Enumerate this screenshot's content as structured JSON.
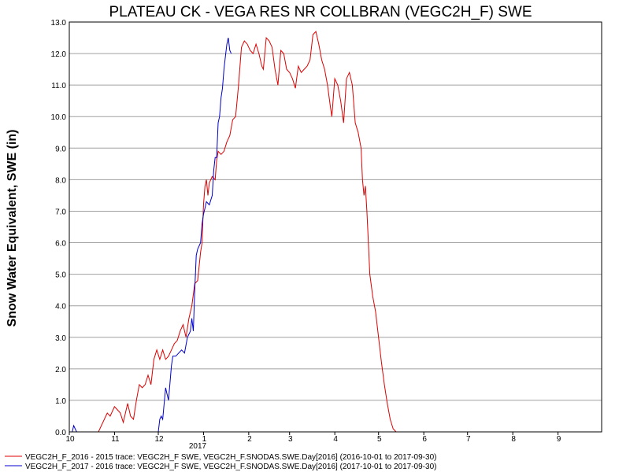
{
  "chart_data": {
    "type": "line",
    "title": "PLATEAU CK - VEGA RES NR COLLBRAN (VEGC2H_F) SWE",
    "ylabel": "Snow Water Equivalent, SWE (in)",
    "xlabel": "",
    "ylim": [
      0,
      13
    ],
    "yticks": [
      "0.0",
      "1.0",
      "2.0",
      "3.0",
      "4.0",
      "5.0",
      "6.0",
      "7.0",
      "8.0",
      "9.0",
      "10.0",
      "11.0",
      "12.0",
      "13.0"
    ],
    "xticks": [
      "10",
      "11",
      "12",
      "1",
      "2",
      "3",
      "4",
      "5",
      "6",
      "7",
      "8",
      "9"
    ],
    "year_label": "2017",
    "grid": true,
    "legend_position": "bottom-left",
    "series": [
      {
        "name": "VEGC2H_F_2016 - 2015 trace: VEGC2H_F SWE, VEGC2H_F.SNODAS.SWE.Day[2016] (2016-10-01 to 2017-09-30)",
        "color": "#dd0000",
        "points": [
          [
            0,
            0
          ],
          [
            20,
            0
          ],
          [
            26,
            0.6
          ],
          [
            28,
            0.5
          ],
          [
            31,
            0.8
          ],
          [
            33,
            0.7
          ],
          [
            35,
            0.6
          ],
          [
            37,
            0.3
          ],
          [
            40,
            0.9
          ],
          [
            42,
            0.5
          ],
          [
            44,
            0.4
          ],
          [
            46,
            1.0
          ],
          [
            48,
            1.5
          ],
          [
            50,
            1.4
          ],
          [
            52,
            1.5
          ],
          [
            54,
            1.8
          ],
          [
            56,
            1.5
          ],
          [
            58,
            2.3
          ],
          [
            60,
            2.6
          ],
          [
            62,
            2.3
          ],
          [
            64,
            2.6
          ],
          [
            66,
            2.3
          ],
          [
            68,
            2.4
          ],
          [
            70,
            2.6
          ],
          [
            72,
            2.8
          ],
          [
            74,
            2.9
          ],
          [
            76,
            3.2
          ],
          [
            78,
            3.4
          ],
          [
            80,
            3.0
          ],
          [
            82,
            3.6
          ],
          [
            84,
            4.0
          ],
          [
            86,
            4.7
          ],
          [
            88,
            4.8
          ],
          [
            90,
            5.7
          ],
          [
            91,
            6.0
          ],
          [
            92,
            7.2
          ],
          [
            93,
            7.8
          ],
          [
            94,
            8.0
          ],
          [
            95,
            7.5
          ],
          [
            96,
            7.9
          ],
          [
            98,
            8.1
          ],
          [
            100,
            8.0
          ],
          [
            101,
            8.6
          ],
          [
            102,
            8.9
          ],
          [
            104,
            8.8
          ],
          [
            106,
            8.9
          ],
          [
            108,
            9.2
          ],
          [
            110,
            9.4
          ],
          [
            112,
            9.9
          ],
          [
            114,
            10.0
          ],
          [
            116,
            11.0
          ],
          [
            118,
            12.2
          ],
          [
            120,
            12.4
          ],
          [
            122,
            12.3
          ],
          [
            124,
            12.1
          ],
          [
            126,
            12.0
          ],
          [
            128,
            12.3
          ],
          [
            130,
            12.0
          ],
          [
            132,
            11.6
          ],
          [
            133,
            11.5
          ],
          [
            135,
            12.5
          ],
          [
            137,
            12.4
          ],
          [
            139,
            12.2
          ],
          [
            141,
            11.5
          ],
          [
            143,
            11.0
          ],
          [
            145,
            12.1
          ],
          [
            147,
            12.0
          ],
          [
            149,
            11.5
          ],
          [
            151,
            11.4
          ],
          [
            153,
            11.2
          ],
          [
            155,
            10.9
          ],
          [
            157,
            11.6
          ],
          [
            159,
            11.4
          ],
          [
            161,
            11.5
          ],
          [
            163,
            11.6
          ],
          [
            165,
            11.8
          ],
          [
            167,
            12.6
          ],
          [
            169,
            12.7
          ],
          [
            171,
            12.3
          ],
          [
            173,
            11.8
          ],
          [
            175,
            11.5
          ],
          [
            177,
            11.0
          ],
          [
            179,
            10.3
          ],
          [
            180,
            10.0
          ],
          [
            182,
            11.2
          ],
          [
            184,
            11.0
          ],
          [
            186,
            10.5
          ],
          [
            188,
            9.8
          ],
          [
            190,
            11.2
          ],
          [
            192,
            11.4
          ],
          [
            194,
            11.0
          ],
          [
            196,
            9.8
          ],
          [
            198,
            9.5
          ],
          [
            200,
            9.0
          ],
          [
            201,
            8.0
          ],
          [
            202,
            7.5
          ],
          [
            203,
            7.8
          ],
          [
            204,
            7.0
          ],
          [
            205,
            6.0
          ],
          [
            206,
            5.0
          ],
          [
            208,
            4.3
          ],
          [
            210,
            3.8
          ],
          [
            212,
            3.0
          ],
          [
            214,
            2.2
          ],
          [
            216,
            1.5
          ],
          [
            218,
            0.9
          ],
          [
            220,
            0.4
          ],
          [
            222,
            0.1
          ],
          [
            224,
            0
          ],
          [
            362,
            0
          ]
        ]
      },
      {
        "name": "VEGC2H_F_2017 - 2016 trace: VEGC2H_F SWE, VEGC2H_F.SNODAS.SWE.Day[2016] (2017-10-01 to 2017-09-30)",
        "color": "#0000cc",
        "points": [
          [
            0,
            0
          ],
          [
            2,
            0
          ],
          [
            3,
            0.2
          ],
          [
            4,
            0.1
          ],
          [
            5,
            0
          ],
          [
            61,
            0
          ],
          [
            62,
            0.4
          ],
          [
            63,
            0.5
          ],
          [
            64,
            0.4
          ],
          [
            66,
            1.4
          ],
          [
            67,
            1.2
          ],
          [
            68,
            1.0
          ],
          [
            70,
            2.1
          ],
          [
            71,
            2.4
          ],
          [
            73,
            2.4
          ],
          [
            75,
            2.5
          ],
          [
            77,
            2.6
          ],
          [
            79,
            2.5
          ],
          [
            81,
            3.0
          ],
          [
            83,
            3.2
          ],
          [
            84,
            3.6
          ],
          [
            85,
            3.2
          ],
          [
            86,
            4.5
          ],
          [
            87,
            5.6
          ],
          [
            88,
            5.8
          ],
          [
            89,
            5.9
          ],
          [
            90,
            6.0
          ],
          [
            91,
            6.6
          ],
          [
            92,
            6.9
          ],
          [
            93,
            7.1
          ],
          [
            94,
            7.3
          ],
          [
            96,
            7.2
          ],
          [
            98,
            7.5
          ],
          [
            99,
            8.3
          ],
          [
            100,
            8.7
          ],
          [
            101,
            8.7
          ],
          [
            102,
            9.8
          ],
          [
            103,
            10.0
          ],
          [
            104,
            10.6
          ],
          [
            105,
            10.9
          ],
          [
            106,
            11.5
          ],
          [
            107,
            11.9
          ],
          [
            108,
            12.3
          ],
          [
            109,
            12.5
          ],
          [
            110,
            12.1
          ],
          [
            111,
            12.0
          ]
        ]
      }
    ]
  }
}
